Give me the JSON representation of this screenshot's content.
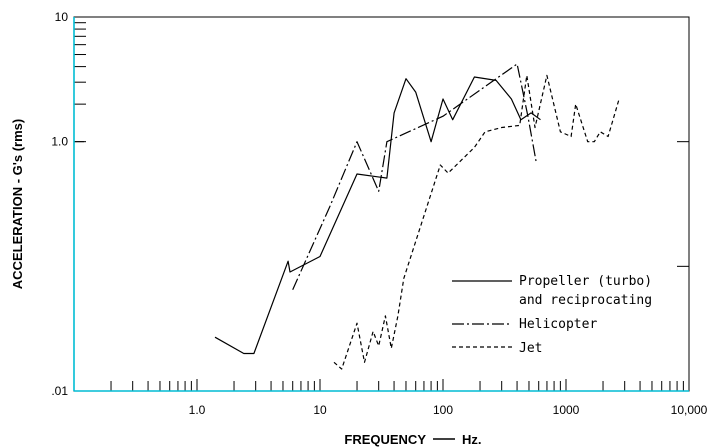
{
  "chart_data": {
    "type": "line",
    "xlabel": "FREQUENCY",
    "xunit": "Hz.",
    "ylabel": "ACCELERATION - G's (rms)",
    "xscale": "log",
    "yscale": "log",
    "xlim": [
      0.1,
      10000
    ],
    "ylim": [
      0.01,
      10
    ],
    "x_tick_labels": [
      "1.0",
      "10",
      "100",
      "1000",
      "10,000"
    ],
    "y_tick_labels": [
      "10",
      "1.0",
      ".01"
    ],
    "y_tick_label_values": [
      10,
      1.0,
      0.01
    ],
    "legend_position": "right-center",
    "series": [
      {
        "name": "Propeller (turbo) and reciprocating",
        "legend_lines": [
          "Propeller (turbo)",
          "and reciprocating"
        ],
        "style": "solid",
        "x": [
          1.4,
          2.4,
          2.9,
          5.5,
          5.7,
          10,
          20,
          35,
          40,
          50,
          60,
          80,
          100,
          120,
          180,
          270,
          360,
          430,
          520,
          620
        ],
        "y": [
          0.027,
          0.02,
          0.02,
          0.11,
          0.09,
          0.12,
          0.55,
          0.51,
          1.7,
          3.2,
          2.5,
          1.0,
          2.2,
          1.5,
          3.3,
          3.1,
          2.2,
          1.5,
          1.7,
          1.5
        ]
      },
      {
        "name": "Helicopter",
        "legend_lines": [
          "Helicopter"
        ],
        "style": "dash-dot",
        "x": [
          6,
          12,
          20,
          30,
          35,
          100,
          400,
          490,
          570
        ],
        "y": [
          0.065,
          0.3,
          1.0,
          0.4,
          1.0,
          1.6,
          4.2,
          1.6,
          0.7
        ]
      },
      {
        "name": "Jet",
        "legend_lines": [
          "Jet"
        ],
        "style": "dashed",
        "x": [
          13,
          15,
          20,
          23,
          27,
          30,
          34,
          38,
          43,
          48,
          95,
          110,
          180,
          220,
          300,
          420,
          480,
          560,
          700,
          900,
          1100,
          1200,
          1500,
          1700,
          1900,
          2200,
          2700
        ],
        "y": [
          0.017,
          0.015,
          0.035,
          0.017,
          0.03,
          0.023,
          0.04,
          0.022,
          0.04,
          0.08,
          0.65,
          0.56,
          0.9,
          1.2,
          1.3,
          1.35,
          3.4,
          1.3,
          3.4,
          1.2,
          1.1,
          2.0,
          1.0,
          1.0,
          1.2,
          1.1,
          2.2
        ]
      }
    ]
  }
}
